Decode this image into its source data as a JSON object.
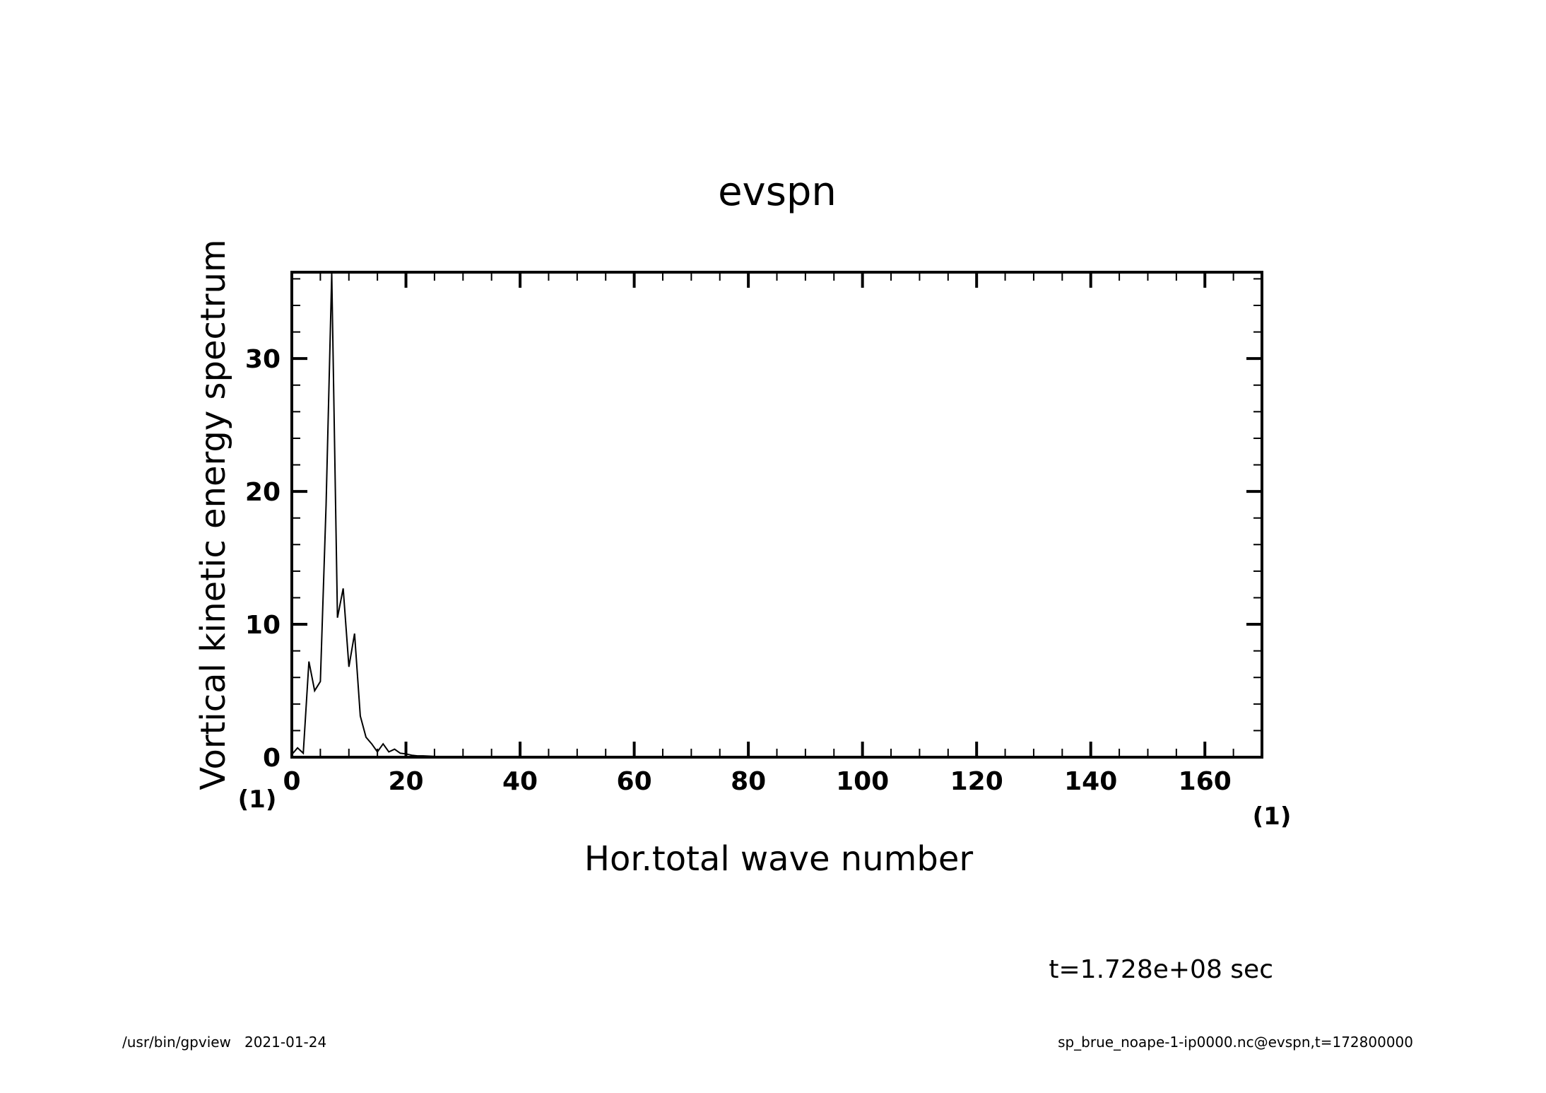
{
  "chart_data": {
    "type": "line",
    "title": "evspn",
    "xlabel": "Hor.total wave number",
    "ylabel": "Vortical kinetic energy spectrum",
    "x_unit": "(1)",
    "y_unit": "(1)",
    "xlim": [
      0,
      170
    ],
    "ylim": [
      0,
      36.5
    ],
    "xticks": [
      0,
      20,
      40,
      60,
      80,
      100,
      120,
      140,
      160
    ],
    "xtick_labels": [
      "0",
      "20",
      "40",
      "60",
      "80",
      "100",
      "120",
      "140",
      "160"
    ],
    "yticks": [
      0,
      10,
      20,
      30
    ],
    "ytick_labels": [
      "0",
      "10",
      "20",
      "30"
    ],
    "x_minor_step": 5,
    "y_minor_step": 2,
    "grid": false,
    "series": [
      {
        "x": [
          0,
          1,
          2,
          3,
          4,
          5,
          6,
          7,
          8,
          9,
          10,
          11,
          12,
          13,
          14,
          15,
          16,
          17,
          18,
          19,
          20,
          21,
          22,
          23,
          24,
          25,
          26,
          27,
          28,
          29,
          30,
          35,
          40,
          50,
          60,
          80,
          100,
          120,
          140,
          160,
          170
        ],
        "y": [
          0.2,
          0.7,
          0.3,
          7.2,
          5.0,
          5.7,
          19.0,
          36.4,
          10.5,
          12.7,
          6.8,
          9.3,
          3.1,
          1.5,
          1.0,
          0.4,
          1.0,
          0.4,
          0.6,
          0.3,
          0.25,
          0.15,
          0.1,
          0.1,
          0.08,
          0.06,
          0.05,
          0.04,
          0.03,
          0.02,
          0.02,
          0.01,
          0.01,
          0,
          0,
          0,
          0,
          0,
          0,
          0,
          0
        ]
      }
    ]
  },
  "annotations": {
    "time": "t=1.728e+08 sec"
  },
  "footer": {
    "left": "/usr/bin/gpview   2021-01-24",
    "right": "sp_brue_noape-1-ip0000.nc@evspn,t=172800000"
  }
}
